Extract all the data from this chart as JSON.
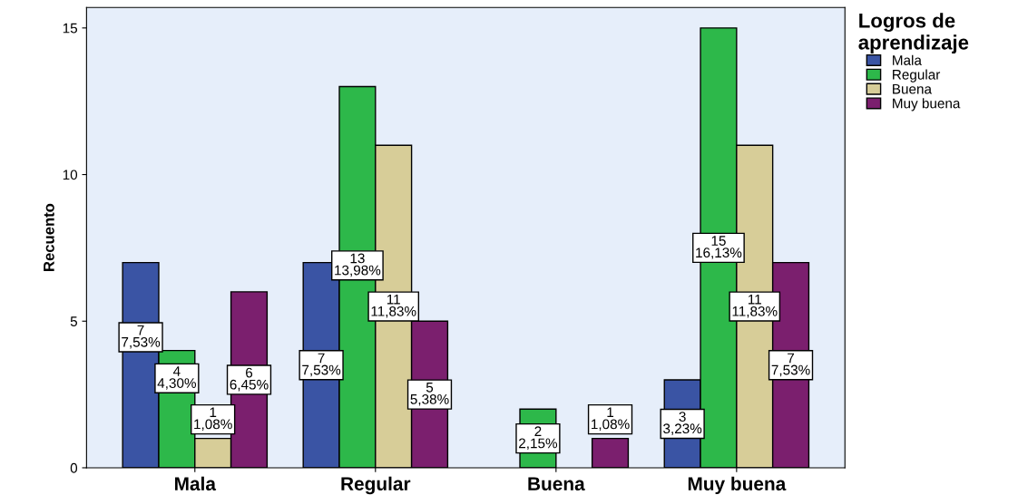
{
  "chart_data": {
    "type": "bar",
    "ylabel": "Recuento",
    "legend_title": "Logros de\naprendizaje",
    "legend": "right",
    "grid": false,
    "categories": [
      "Mala",
      "Regular",
      "Buena",
      "Muy buena"
    ],
    "ylim": [
      0,
      15.7
    ],
    "yticks": [
      0,
      5,
      10,
      15
    ],
    "series": [
      {
        "name": "Mala",
        "color": "#3a54a4",
        "values": [
          7,
          7,
          null,
          3
        ],
        "value_labels": [
          "7\n7,53%",
          "7\n7,53%",
          null,
          "3\n3,23%"
        ]
      },
      {
        "name": "Regular",
        "color": "#2db84a",
        "values": [
          4,
          13,
          2,
          15
        ],
        "value_labels": [
          "4\n4,30%",
          "13\n13,98%",
          "2\n2,15%",
          "15\n16,13%"
        ]
      },
      {
        "name": "Buena",
        "color": "#d7cd98",
        "values": [
          1,
          11,
          null,
          11
        ],
        "value_labels": [
          "1\n1,08%",
          "11\n11,83%",
          null,
          "11\n11,83%"
        ]
      },
      {
        "name": "Muy buena",
        "color": "#7b1f6e",
        "values": [
          6,
          5,
          1,
          7
        ],
        "value_labels": [
          "6\n6,45%",
          "5\n5,38%",
          "1\n1,08%",
          "7\n7,53%"
        ]
      }
    ]
  }
}
